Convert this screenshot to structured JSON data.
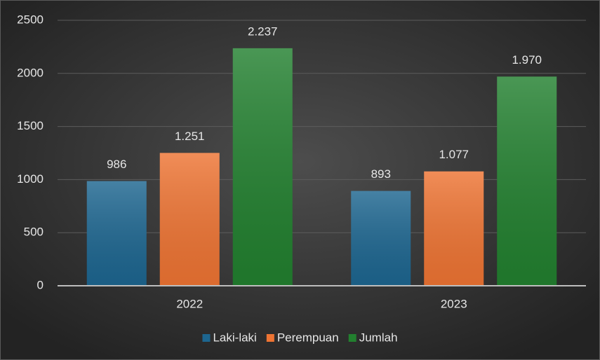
{
  "chart_data": {
    "type": "bar",
    "categories": [
      "2022",
      "2023"
    ],
    "series": [
      {
        "name": "Laki-laki",
        "color": "#1d6690",
        "values": [
          986,
          893
        ],
        "value_labels": [
          "986",
          "893"
        ]
      },
      {
        "name": "Perempuan",
        "color": "#ee7433",
        "values": [
          1251,
          1077
        ],
        "value_labels": [
          "1.251",
          "1.077"
        ]
      },
      {
        "name": "Jumlah",
        "color": "#22802f",
        "values": [
          2237,
          1970
        ],
        "value_labels": [
          "2.237",
          "1.970"
        ]
      }
    ],
    "ylim": [
      0,
      2500
    ],
    "yticks": [
      0,
      500,
      1000,
      1500,
      2000,
      2500
    ],
    "grid": true,
    "legend": "bottom"
  }
}
